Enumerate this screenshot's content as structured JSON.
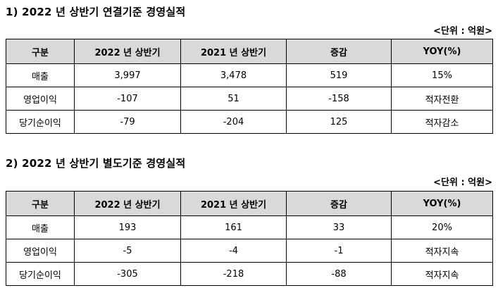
{
  "report": {
    "sections": [
      {
        "title": "1) 2022 년 상반기 연결기준 경영실적",
        "unit": "<단위 : 억원>",
        "headers": [
          "구분",
          "2022 년 상반기",
          "2021 년 상반기",
          "증감",
          "YOY(%)"
        ],
        "rows": [
          [
            "매출",
            "3,997",
            "3,478",
            "519",
            "15%"
          ],
          [
            "영업이익",
            "-107",
            "51",
            "-158",
            "적자전환"
          ],
          [
            "당기순이익",
            "-79",
            "-204",
            "125",
            "적자감소"
          ]
        ]
      },
      {
        "title": "2) 2022 년 상반기 별도기준 경영실적",
        "unit": "<단위 : 억원>",
        "headers": [
          "구분",
          "2022 년 상반기",
          "2021 년 상반기",
          "증감",
          "YOY(%)"
        ],
        "rows": [
          [
            "매출",
            "193",
            "161",
            "33",
            "20%"
          ],
          [
            "영업이익",
            "-5",
            "-4",
            "-1",
            "적자지속"
          ],
          [
            "당기순이익",
            "-305",
            "-218",
            "-88",
            "적자지속"
          ]
        ]
      }
    ]
  }
}
